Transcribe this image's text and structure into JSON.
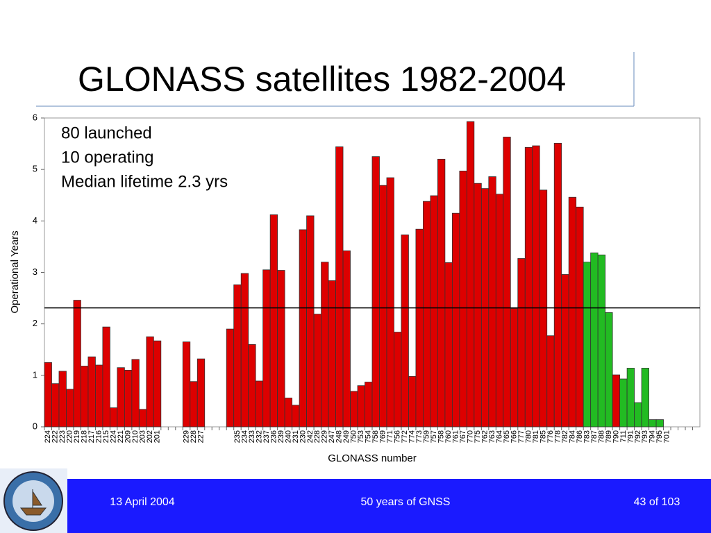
{
  "slide": {
    "title": "GLONASS satellites 1982-2004",
    "date": "13 April 2004",
    "center": "50 years of GNSS",
    "page": "43 of 103"
  },
  "chart_data": {
    "type": "bar",
    "annotations": [
      "80 launched",
      "10 operating",
      "Median lifetime 2.3 yrs"
    ],
    "xlabel": "GLONASS number",
    "ylabel": "Operational Years",
    "categories": [
      "224",
      "222",
      "223",
      "220",
      "219",
      "218",
      "217",
      "216",
      "215",
      "224",
      "221",
      "209",
      "210",
      "203",
      "202",
      "201",
      null,
      null,
      null,
      "229",
      "228",
      "227",
      null,
      null,
      null,
      null,
      "235",
      "234",
      "233",
      "232",
      "237",
      "236",
      "239",
      "240",
      "231",
      "230",
      "242",
      "228",
      "229",
      "247",
      "248",
      "249",
      "750",
      "753",
      "754",
      "758",
      "769",
      "771",
      "756",
      "772",
      "774",
      "773",
      "759",
      "757",
      "758",
      "760",
      "761",
      "767",
      "770",
      "775",
      "762",
      "763",
      "764",
      "765",
      "766",
      "777",
      "780",
      "781",
      "785",
      "776",
      "778",
      "782",
      "784",
      "786",
      "783",
      "787",
      "788",
      "789",
      "790",
      "711",
      "791",
      "792",
      "793",
      "794",
      "795",
      "701",
      null,
      null,
      null,
      null
    ],
    "values": [
      1.25,
      0.84,
      1.08,
      0.73,
      2.46,
      1.18,
      1.36,
      1.2,
      1.94,
      0.37,
      1.15,
      1.1,
      1.31,
      0.34,
      1.75,
      1.67,
      null,
      null,
      null,
      1.65,
      0.88,
      1.32,
      null,
      null,
      null,
      1.9,
      2.76,
      2.98,
      1.6,
      0.89,
      3.05,
      4.12,
      3.04,
      0.56,
      0.42,
      3.83,
      4.1,
      2.19,
      3.2,
      2.84,
      5.44,
      3.42,
      0.69,
      0.8,
      0.87,
      5.25,
      4.69,
      4.84,
      1.84,
      3.73,
      0.98,
      3.84,
      4.38,
      4.49,
      5.2,
      3.19,
      4.15,
      4.97,
      5.93,
      4.73,
      4.63,
      4.86,
      4.52,
      5.63,
      2.3,
      3.27,
      5.43,
      5.46,
      4.6,
      1.77,
      5.51,
      2.96,
      4.46,
      4.27,
      3.2,
      3.38,
      3.34,
      2.22,
      1.01,
      0.93,
      1.14,
      0.47,
      1.14,
      0.14,
      0.14,
      null,
      null,
      null,
      null,
      null
    ],
    "colors": [
      "#dd0000",
      "#dd0000",
      "#dd0000",
      "#dd0000",
      "#dd0000",
      "#dd0000",
      "#dd0000",
      "#dd0000",
      "#dd0000",
      "#dd0000",
      "#dd0000",
      "#dd0000",
      "#dd0000",
      "#dd0000",
      "#dd0000",
      "#dd0000",
      null,
      null,
      null,
      "#dd0000",
      "#dd0000",
      "#dd0000",
      null,
      null,
      null,
      "#dd0000",
      "#dd0000",
      "#dd0000",
      "#dd0000",
      "#dd0000",
      "#dd0000",
      "#dd0000",
      "#dd0000",
      "#dd0000",
      "#dd0000",
      "#dd0000",
      "#dd0000",
      "#dd0000",
      "#dd0000",
      "#dd0000",
      "#dd0000",
      "#dd0000",
      "#dd0000",
      "#dd0000",
      "#dd0000",
      "#dd0000",
      "#dd0000",
      "#dd0000",
      "#dd0000",
      "#dd0000",
      "#dd0000",
      "#dd0000",
      "#dd0000",
      "#dd0000",
      "#dd0000",
      "#dd0000",
      "#dd0000",
      "#dd0000",
      "#dd0000",
      "#dd0000",
      "#dd0000",
      "#dd0000",
      "#dd0000",
      "#dd0000",
      "#dd0000",
      "#dd0000",
      "#dd0000",
      "#dd0000",
      "#dd0000",
      "#dd0000",
      "#dd0000",
      "#dd0000",
      "#dd0000",
      "#dd0000",
      "#22bb22",
      "#22bb22",
      "#22bb22",
      "#22bb22",
      "#dd0000",
      "#22bb22",
      "#22bb22",
      "#22bb22",
      "#22bb22",
      "#22bb22",
      "#22bb22",
      null,
      null,
      null,
      null,
      null
    ],
    "hline": 2.31,
    "ylim": [
      0,
      6
    ],
    "yticks": [
      0,
      1,
      2,
      3,
      4,
      5,
      6
    ]
  }
}
